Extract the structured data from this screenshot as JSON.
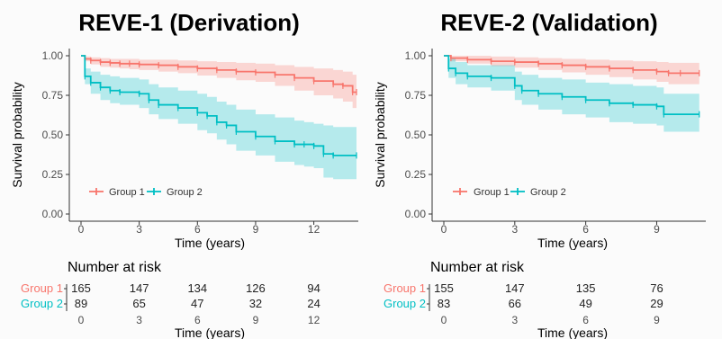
{
  "chart_data": [
    {
      "type": "line",
      "title": "REVE-1 (Derivation)",
      "xlabel": "Time (years)",
      "ylabel": "Survival probability",
      "xlim": [
        0,
        14.2
      ],
      "ylim": [
        0,
        1
      ],
      "x_ticks": [
        "0",
        "3",
        "6",
        "9",
        "12"
      ],
      "y_ticks": [
        "0.00",
        "0.25",
        "0.50",
        "0.75",
        "1.00"
      ],
      "legend_position": "bottom-left",
      "series": [
        {
          "name": "Group 1",
          "color": "#F8766D",
          "x": [
            0,
            0.2,
            0.5,
            1.0,
            1.5,
            2.0,
            2.5,
            3.0,
            4.0,
            5.0,
            6.0,
            7.0,
            8.0,
            9.0,
            10.0,
            11.0,
            12.0,
            13.0,
            13.5,
            14.0,
            14.2
          ],
          "y": [
            1.0,
            0.98,
            0.97,
            0.96,
            0.955,
            0.95,
            0.95,
            0.945,
            0.94,
            0.93,
            0.92,
            0.91,
            0.9,
            0.895,
            0.88,
            0.86,
            0.84,
            0.82,
            0.81,
            0.77,
            0.77
          ],
          "lower": [
            1.0,
            0.965,
            0.945,
            0.93,
            0.925,
            0.92,
            0.915,
            0.91,
            0.9,
            0.89,
            0.875,
            0.86,
            0.845,
            0.835,
            0.81,
            0.78,
            0.75,
            0.73,
            0.71,
            0.67,
            0.67
          ],
          "upper": [
            1.0,
            0.995,
            0.99,
            0.985,
            0.98,
            0.98,
            0.98,
            0.975,
            0.975,
            0.97,
            0.965,
            0.96,
            0.955,
            0.95,
            0.94,
            0.93,
            0.92,
            0.91,
            0.9,
            0.88,
            0.88
          ]
        },
        {
          "name": "Group 2",
          "color": "#00BFC4",
          "x": [
            0,
            0.2,
            0.5,
            1.0,
            1.5,
            2.0,
            3.0,
            3.5,
            4.0,
            5.0,
            6.0,
            6.5,
            7.0,
            7.5,
            8.0,
            9.0,
            10.0,
            11.0,
            11.5,
            12.0,
            12.5,
            13.0,
            14.2
          ],
          "y": [
            1.0,
            0.87,
            0.83,
            0.8,
            0.78,
            0.77,
            0.76,
            0.72,
            0.69,
            0.67,
            0.64,
            0.62,
            0.58,
            0.56,
            0.52,
            0.49,
            0.46,
            0.44,
            0.44,
            0.43,
            0.38,
            0.37,
            0.37
          ],
          "lower": [
            1.0,
            0.82,
            0.76,
            0.72,
            0.7,
            0.69,
            0.67,
            0.63,
            0.6,
            0.57,
            0.53,
            0.51,
            0.47,
            0.44,
            0.4,
            0.37,
            0.33,
            0.31,
            0.3,
            0.29,
            0.23,
            0.22,
            0.22
          ],
          "upper": [
            1.0,
            0.92,
            0.9,
            0.88,
            0.87,
            0.86,
            0.85,
            0.82,
            0.8,
            0.78,
            0.76,
            0.74,
            0.71,
            0.69,
            0.66,
            0.63,
            0.61,
            0.59,
            0.58,
            0.57,
            0.56,
            0.55,
            0.55
          ]
        }
      ],
      "risk_table": {
        "title": "Number at risk",
        "time_points": [
          "0",
          "3",
          "6",
          "9",
          "12"
        ],
        "xlabel": "Time (years)",
        "groups": [
          {
            "name": "Group 1",
            "color": "#F8766D",
            "values": [
              "165",
              "147",
              "134",
              "126",
              "94"
            ]
          },
          {
            "name": "Group 2",
            "color": "#00BFC4",
            "values": [
              "89",
              "65",
              "47",
              "32",
              "24"
            ]
          }
        ]
      }
    },
    {
      "type": "line",
      "title": "REVE-2 (Validation)",
      "xlabel": "Time (years)",
      "ylabel": "Survival probability",
      "xlim": [
        0,
        11.0
      ],
      "ylim": [
        0,
        1
      ],
      "x_ticks": [
        "0",
        "3",
        "6",
        "9"
      ],
      "y_ticks": [
        "0.00",
        "0.25",
        "0.50",
        "0.75",
        "1.00"
      ],
      "legend_position": "bottom-left",
      "series": [
        {
          "name": "Group 1",
          "color": "#F8766D",
          "x": [
            0,
            0.3,
            1.0,
            2.0,
            3.0,
            4.0,
            5.0,
            6.0,
            7.0,
            8.0,
            9.0,
            9.5,
            10.0,
            10.8
          ],
          "y": [
            1.0,
            0.985,
            0.975,
            0.965,
            0.96,
            0.95,
            0.94,
            0.93,
            0.92,
            0.91,
            0.9,
            0.89,
            0.89,
            0.89
          ],
          "lower": [
            1.0,
            0.965,
            0.95,
            0.935,
            0.925,
            0.91,
            0.895,
            0.88,
            0.865,
            0.85,
            0.835,
            0.82,
            0.82,
            0.82
          ],
          "upper": [
            1.0,
            1.0,
            1.0,
            0.995,
            0.99,
            0.985,
            0.98,
            0.975,
            0.97,
            0.965,
            0.96,
            0.955,
            0.955,
            0.955
          ]
        },
        {
          "name": "Group 2",
          "color": "#00BFC4",
          "x": [
            0,
            0.2,
            0.5,
            1.0,
            2.0,
            3.0,
            3.3,
            4.0,
            5.0,
            6.0,
            7.0,
            8.0,
            9.0,
            9.3,
            10.8
          ],
          "y": [
            1.0,
            0.92,
            0.89,
            0.87,
            0.86,
            0.81,
            0.78,
            0.76,
            0.74,
            0.72,
            0.7,
            0.69,
            0.68,
            0.63,
            0.63
          ],
          "lower": [
            1.0,
            0.86,
            0.82,
            0.8,
            0.78,
            0.72,
            0.69,
            0.66,
            0.63,
            0.61,
            0.58,
            0.57,
            0.56,
            0.52,
            0.52
          ],
          "upper": [
            1.0,
            0.98,
            0.96,
            0.94,
            0.94,
            0.9,
            0.88,
            0.86,
            0.85,
            0.83,
            0.82,
            0.81,
            0.8,
            0.76,
            0.76
          ]
        }
      ],
      "risk_table": {
        "title": "Number at risk",
        "time_points": [
          "0",
          "3",
          "6",
          "9"
        ],
        "xlabel": "Time (years)",
        "groups": [
          {
            "name": "Group 1",
            "color": "#F8766D",
            "values": [
              "155",
              "147",
              "135",
              "76"
            ]
          },
          {
            "name": "Group 2",
            "color": "#00BFC4",
            "values": [
              "83",
              "66",
              "49",
              "29"
            ]
          }
        ]
      }
    }
  ]
}
